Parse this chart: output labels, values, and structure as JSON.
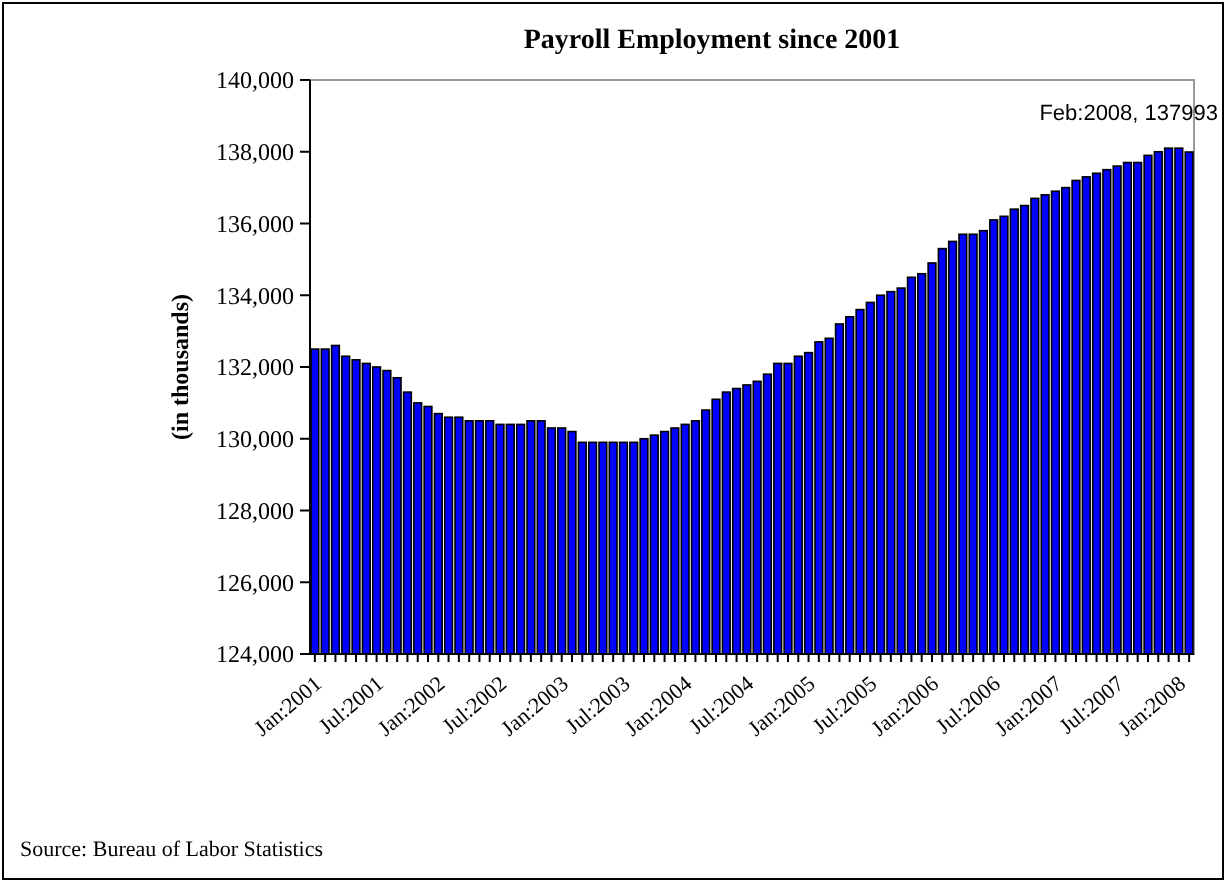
{
  "chart_data": {
    "type": "bar",
    "title": "Payroll Employment since 2001",
    "ylabel": "(in thousands)",
    "categories": [
      "Jan:2001",
      null,
      null,
      null,
      null,
      null,
      "Jul:2001",
      null,
      null,
      null,
      null,
      null,
      "Jan:2002",
      null,
      null,
      null,
      null,
      null,
      "Jul:2002",
      null,
      null,
      null,
      null,
      null,
      "Jan:2003",
      null,
      null,
      null,
      null,
      null,
      "Jul:2003",
      null,
      null,
      null,
      null,
      null,
      "Jan:2004",
      null,
      null,
      null,
      null,
      null,
      "Jul:2004",
      null,
      null,
      null,
      null,
      null,
      "Jan:2005",
      null,
      null,
      null,
      null,
      null,
      "Jul:2005",
      null,
      null,
      null,
      null,
      null,
      "Jan:2006",
      null,
      null,
      null,
      null,
      null,
      "Jul:2006",
      null,
      null,
      null,
      null,
      null,
      "Jan:2007",
      null,
      null,
      null,
      null,
      null,
      "Jul:2007",
      null,
      null,
      null,
      null,
      null,
      "Jan:2008",
      null
    ],
    "values": [
      132500,
      132500,
      132600,
      132300,
      132200,
      132100,
      132000,
      131900,
      131700,
      131300,
      131000,
      130900,
      130700,
      130600,
      130600,
      130500,
      130500,
      130500,
      130400,
      130400,
      130400,
      130500,
      130500,
      130300,
      130300,
      130200,
      129900,
      129900,
      129900,
      129900,
      129900,
      129900,
      130000,
      130100,
      130200,
      130300,
      130400,
      130500,
      130800,
      131100,
      131300,
      131400,
      131500,
      131600,
      131800,
      132100,
      132100,
      132300,
      132400,
      132700,
      132800,
      133200,
      133400,
      133600,
      133800,
      134000,
      134100,
      134200,
      134500,
      134600,
      134900,
      135300,
      135500,
      135700,
      135700,
      135800,
      136100,
      136200,
      136400,
      136500,
      136700,
      136800,
      136900,
      137000,
      137200,
      137300,
      137400,
      137500,
      137600,
      137700,
      137700,
      137900,
      138000,
      138100,
      138100,
      137993
    ],
    "color": "#0000ff",
    "ylim": [
      124000,
      140000
    ],
    "yticks": [
      {
        "value": 124000,
        "label": "124,000"
      },
      {
        "value": 126000,
        "label": "126,000"
      },
      {
        "value": 128000,
        "label": "128,000"
      },
      {
        "value": 130000,
        "label": "130,000"
      },
      {
        "value": 132000,
        "label": "132,000"
      },
      {
        "value": 134000,
        "label": "134,000"
      },
      {
        "value": 136000,
        "label": "136,000"
      },
      {
        "value": 138000,
        "label": "138,000"
      },
      {
        "value": 140000,
        "label": "140,000"
      }
    ],
    "grid": false,
    "annotations": [
      "Feb:2008, 137993",
      "Source: Bureau of Labor Statistics"
    ]
  }
}
